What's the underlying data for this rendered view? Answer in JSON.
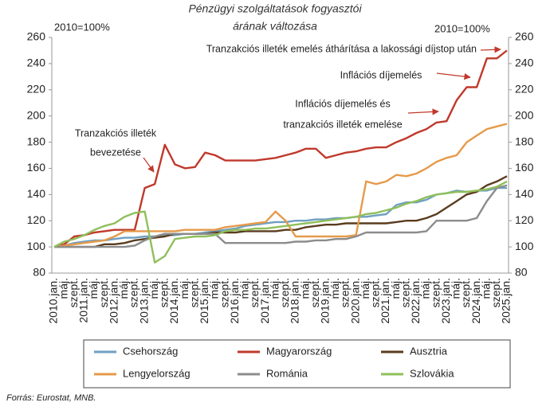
{
  "chart_data": {
    "type": "line",
    "title": [
      "Pénzügyi szolgáltatások fogyasztói",
      "árának változása"
    ],
    "left_note": "2010=100%",
    "right_note": "2010=100%",
    "categories": [
      "2010.jan.",
      "máj.",
      "szept.",
      "2011.jan.",
      "máj.",
      "szept.",
      "2012.jan.",
      "máj.",
      "szept.",
      "2013.jan.",
      "máj.",
      "szept.",
      "2014.jan.",
      "máj.",
      "szept.",
      "2015.jan.",
      "máj.",
      "szept.",
      "2016.jan.",
      "máj.",
      "szept.",
      "2017.jan.",
      "máj.",
      "szept.",
      "2018.jan.",
      "máj.",
      "szept.",
      "2019.jan.",
      "máj.",
      "szept.",
      "2020.jan.",
      "máj.",
      "szept.",
      "2021.jan.",
      "máj.",
      "szept.",
      "2022.jan.",
      "máj.",
      "szept.",
      "2023.jan.",
      "máj.",
      "szept.",
      "2024.jan.",
      "máj.",
      "szept.",
      "2025.jan."
    ],
    "series": [
      {
        "name": "Csehország",
        "color": "#6f9fc2",
        "values": [
          100,
          101,
          103,
          104,
          105,
          105,
          106,
          107,
          107,
          108,
          108,
          109,
          109,
          110,
          110,
          111,
          112,
          113,
          114,
          116,
          117,
          118,
          119,
          119,
          120,
          120,
          121,
          121,
          122,
          122,
          123,
          123,
          124,
          125,
          132,
          134,
          134,
          136,
          140,
          141,
          143,
          142,
          143,
          143,
          145,
          145
        ]
      },
      {
        "name": "Magyarország",
        "color": "#c0392b",
        "values": [
          100,
          102,
          108,
          109,
          111,
          112,
          113,
          113,
          113,
          145,
          148,
          178,
          163,
          160,
          161,
          172,
          170,
          166,
          166,
          166,
          166,
          167,
          168,
          170,
          172,
          175,
          175,
          168,
          170,
          172,
          173,
          175,
          176,
          176,
          180,
          183,
          187,
          190,
          195,
          196,
          212,
          222,
          222,
          244,
          244,
          250
        ]
      },
      {
        "name": "Ausztria",
        "color": "#5a3c1e",
        "values": [
          100,
          100,
          100,
          100,
          100,
          102,
          102,
          103,
          105,
          106,
          107,
          108,
          110,
          110,
          110,
          110,
          111,
          111,
          111,
          112,
          112,
          112,
          112,
          113,
          113,
          115,
          116,
          117,
          117,
          118,
          118,
          118,
          118,
          118,
          119,
          120,
          120,
          122,
          125,
          130,
          135,
          140,
          142,
          147,
          150,
          154
        ]
      },
      {
        "name": "Lengyelország",
        "color": "#e59a4a",
        "values": [
          100,
          101,
          102,
          103,
          104,
          105,
          108,
          112,
          112,
          112,
          112,
          112,
          112,
          113,
          113,
          113,
          113,
          115,
          116,
          117,
          118,
          119,
          127,
          120,
          108,
          108,
          108,
          108,
          108,
          108,
          109,
          150,
          148,
          150,
          155,
          154,
          156,
          160,
          165,
          168,
          170,
          180,
          185,
          190,
          192,
          194
        ]
      },
      {
        "name": "Románia",
        "color": "#8c8c8c",
        "values": [
          100,
          100,
          100,
          100,
          100,
          100,
          100,
          100,
          101,
          105,
          108,
          110,
          110,
          110,
          110,
          110,
          110,
          103,
          103,
          103,
          103,
          103,
          103,
          103,
          104,
          104,
          105,
          105,
          106,
          106,
          108,
          111,
          111,
          111,
          111,
          111,
          111,
          112,
          120,
          120,
          120,
          120,
          122,
          135,
          145,
          147
        ]
      },
      {
        "name": "Szlovákia",
        "color": "#8fbf5a",
        "values": [
          100,
          104,
          106,
          109,
          113,
          116,
          118,
          123,
          126,
          127,
          88,
          93,
          106,
          107,
          108,
          108,
          109,
          112,
          113,
          113,
          114,
          114,
          115,
          116,
          117,
          118,
          119,
          120,
          121,
          122,
          123,
          125,
          126,
          128,
          130,
          133,
          135,
          138,
          140,
          141,
          142,
          142,
          143,
          144,
          146,
          150
        ]
      }
    ],
    "ylim": [
      80,
      260
    ],
    "yticks": [
      80,
      100,
      120,
      140,
      160,
      180,
      200,
      220,
      240,
      260
    ],
    "y2lim": [
      80,
      260
    ],
    "y2ticks": [
      80,
      100,
      120,
      140,
      160,
      180,
      200,
      220,
      240,
      260
    ],
    "grid": false,
    "annotations": [
      [
        "Tranzakciós illeték emelés áthárítása a lakossági díjstop után"
      ],
      [
        "Inflációs díjemelés"
      ],
      [
        "Inflációs díjemelés és",
        "tranzakciós illeték emelése"
      ],
      [
        "Tranzakciós illeték",
        "bevezetése"
      ]
    ],
    "source": "Forrás: Eurostat, MNB."
  }
}
